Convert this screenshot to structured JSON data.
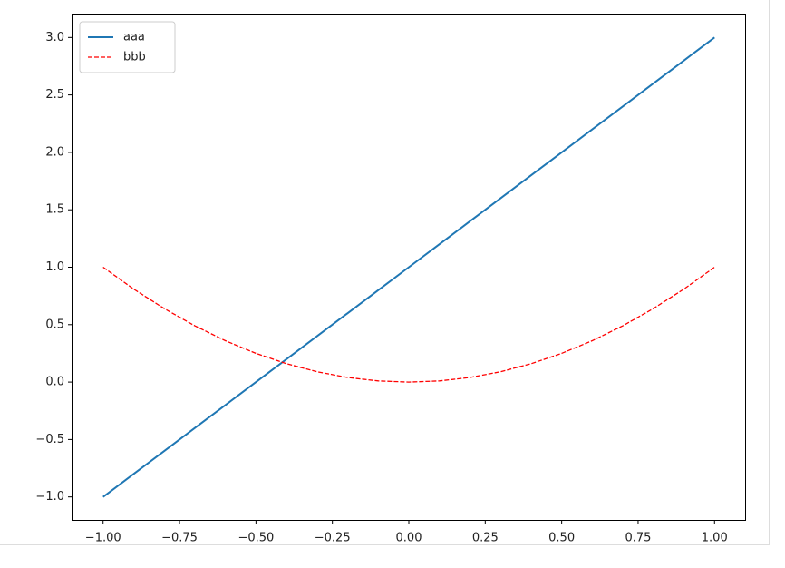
{
  "chart_data": {
    "type": "line",
    "x": [
      -1,
      -0.9,
      -0.8,
      -0.7,
      -0.6,
      -0.5,
      -0.4,
      -0.3,
      -0.2,
      -0.1,
      0,
      0.1,
      0.2,
      0.3,
      0.4,
      0.5,
      0.6,
      0.7,
      0.8,
      0.9,
      1
    ],
    "series": [
      {
        "name": "aaa",
        "color": "#1f77b4",
        "linestyle": "solid",
        "values": [
          -1,
          -0.8,
          -0.6,
          -0.4,
          -0.2,
          0,
          0.2,
          0.4,
          0.6,
          0.8,
          1,
          1.2,
          1.4,
          1.6,
          1.8,
          2,
          2.2,
          2.4,
          2.6,
          2.8,
          3
        ]
      },
      {
        "name": "bbb",
        "color": "#ff0000",
        "linestyle": "dashed",
        "values": [
          1,
          0.81,
          0.64,
          0.49,
          0.36,
          0.25,
          0.16,
          0.09,
          0.04,
          0.01,
          0,
          0.01,
          0.04,
          0.09,
          0.16,
          0.25,
          0.36,
          0.49,
          0.64,
          0.81,
          1
        ]
      }
    ],
    "xlim": [
      -1.1,
      1.1
    ],
    "ylim": [
      -1.2,
      3.2
    ],
    "xticks": [
      {
        "value": -1,
        "label": "−1.00"
      },
      {
        "value": -0.75,
        "label": "−0.75"
      },
      {
        "value": -0.5,
        "label": "−0.50"
      },
      {
        "value": -0.25,
        "label": "−0.25"
      },
      {
        "value": 0,
        "label": "0.00"
      },
      {
        "value": 0.25,
        "label": "0.25"
      },
      {
        "value": 0.5,
        "label": "0.50"
      },
      {
        "value": 0.75,
        "label": "0.75"
      },
      {
        "value": 1,
        "label": "1.00"
      }
    ],
    "yticks": [
      {
        "value": -1,
        "label": "−1.0"
      },
      {
        "value": -0.5,
        "label": "−0.5"
      },
      {
        "value": 0,
        "label": "0.0"
      },
      {
        "value": 0.5,
        "label": "0.5"
      },
      {
        "value": 1,
        "label": "1.0"
      },
      {
        "value": 1.5,
        "label": "1.5"
      },
      {
        "value": 2,
        "label": "2.0"
      },
      {
        "value": 2.5,
        "label": "2.5"
      },
      {
        "value": 3,
        "label": "3.0"
      }
    ],
    "legend": "upper left",
    "grid": false
  }
}
